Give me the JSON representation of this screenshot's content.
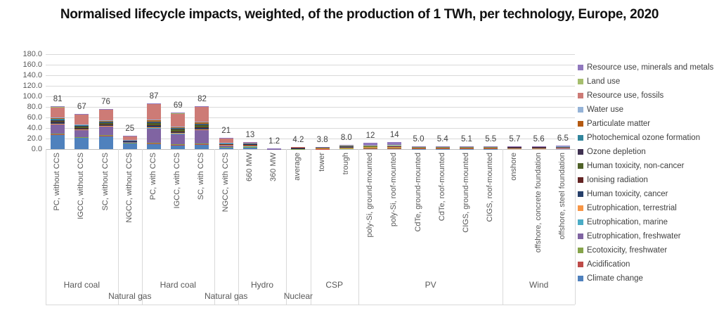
{
  "chart_data": {
    "type": "bar",
    "stacked": true,
    "title": "Normalised lifecycle impacts, weighted, of the production of 1 TWh, per technology, Europe, 2020",
    "ylim": [
      0,
      180
    ],
    "ytick_step": 20,
    "ytick_decimals": 1,
    "grid": true,
    "legend_position": "right",
    "series": [
      {
        "name": "Climate change",
        "color": "#4F81BD"
      },
      {
        "name": "Acidification",
        "color": "#BE4B48"
      },
      {
        "name": "Ecotoxicity, freshwater",
        "color": "#86A44A"
      },
      {
        "name": "Eutrophication, freshwater",
        "color": "#8064A2"
      },
      {
        "name": "Eutrophication, marine",
        "color": "#4BACC6"
      },
      {
        "name": "Eutrophication, terrestrial",
        "color": "#F79646"
      },
      {
        "name": "Human toxicity, cancer",
        "color": "#263F6A"
      },
      {
        "name": "Ionising radiation",
        "color": "#632423"
      },
      {
        "name": "Human toxicity, non-cancer",
        "color": "#4F6228"
      },
      {
        "name": "Ozone depletion",
        "color": "#3F3151"
      },
      {
        "name": "Photochemical ozone formation",
        "color": "#31859C"
      },
      {
        "name": "Particulate matter",
        "color": "#B55A11"
      },
      {
        "name": "Water use",
        "color": "#95B3D7"
      },
      {
        "name": "Resource use, fossils",
        "color": "#CD7B76"
      },
      {
        "name": "Land use",
        "color": "#A6BE6E"
      },
      {
        "name": "Resource use, minerals and metals",
        "color": "#9179BE"
      }
    ],
    "bars": [
      {
        "label": "PC, without CCS",
        "total_label": "81",
        "values": [
          27,
          2,
          0.5,
          18,
          0.3,
          0.7,
          2.5,
          0.5,
          3.5,
          0.3,
          1.5,
          2,
          1.2,
          20,
          0.5,
          0.5
        ]
      },
      {
        "label": "IGCC, without CCS",
        "total_label": "67",
        "values": [
          21,
          1.5,
          0.4,
          14,
          0.3,
          0.6,
          2,
          0.4,
          3,
          0.3,
          1.2,
          1.5,
          1,
          19,
          0.4,
          0.4
        ]
      },
      {
        "label": "SC, without CCS",
        "total_label": "76",
        "values": [
          24,
          1.8,
          0.5,
          17,
          0.3,
          0.7,
          2.2,
          0.5,
          3.2,
          0.3,
          1.4,
          1.8,
          1.1,
          20,
          0.6,
          0.6
        ]
      },
      {
        "label": "NGCC, without CCS",
        "total_label": "25",
        "values": [
          11,
          0.6,
          0.2,
          2.5,
          0.1,
          0.3,
          0.6,
          0.2,
          0.8,
          0.2,
          0.5,
          0.4,
          0.3,
          7,
          0.1,
          0.2
        ]
      },
      {
        "label": "PC, with CCS",
        "total_label": "87",
        "values": [
          9,
          2.2,
          0.8,
          28,
          0.4,
          0.8,
          3.5,
          0.6,
          5,
          0.4,
          1.8,
          2.5,
          1.5,
          29,
          0.7,
          0.8
        ]
      },
      {
        "label": "IGCC, with CCS",
        "total_label": "69",
        "values": [
          7,
          1.6,
          0.6,
          20,
          0.3,
          0.7,
          3,
          0.5,
          4.5,
          0.4,
          1.5,
          2,
          1.2,
          24.5,
          0.6,
          0.6
        ]
      },
      {
        "label": "SC, with CCS",
        "total_label": "82",
        "values": [
          8,
          2,
          0.7,
          26,
          0.4,
          0.8,
          3.2,
          0.6,
          4.8,
          0.4,
          1.7,
          2.3,
          1.4,
          28.2,
          0.7,
          0.8
        ]
      },
      {
        "label": "NGCC, with CCS",
        "total_label": "21",
        "values": [
          3,
          0.6,
          0.3,
          3.5,
          0.1,
          0.3,
          0.9,
          0.2,
          1.2,
          0.3,
          0.5,
          0.5,
          0.4,
          8.8,
          0.2,
          0.2
        ]
      },
      {
        "label": "660 MW",
        "total_label": "13",
        "values": [
          2.5,
          1,
          0.5,
          1.5,
          0.3,
          0.5,
          1.5,
          0.3,
          1.5,
          0.2,
          0.7,
          1,
          0.5,
          0.5,
          0.3,
          0.2
        ]
      },
      {
        "label": "360 MW",
        "total_label": "1.2",
        "values": [
          0.2,
          0.05,
          0.05,
          0.2,
          0,
          0,
          0.2,
          0.05,
          0.1,
          0,
          0.05,
          0.1,
          0,
          0.1,
          0,
          0.1
        ]
      },
      {
        "label": "average",
        "total_label": "4.2",
        "values": [
          0.4,
          0.1,
          0.1,
          0.4,
          0.05,
          0.05,
          0.5,
          2,
          0.2,
          0.05,
          0.1,
          0.1,
          0.05,
          0.1,
          0,
          0
        ]
      },
      {
        "label": "tower",
        "total_label": "3.8",
        "values": [
          0.5,
          0.1,
          0.1,
          0.5,
          0.05,
          0.05,
          1.7,
          0.1,
          0.2,
          0,
          0.1,
          0.1,
          0.1,
          0.1,
          0,
          0.1
        ]
      },
      {
        "label": "trough",
        "total_label": "8.0",
        "values": [
          1,
          0.2,
          0.2,
          1,
          0.1,
          0.1,
          2.5,
          0.2,
          0.5,
          0.1,
          0.2,
          0.3,
          0.2,
          0.3,
          0.1,
          1
        ]
      },
      {
        "label": "poly-Si, ground-mounted",
        "total_label": "12",
        "values": [
          1.5,
          0.3,
          0.3,
          1.5,
          0.1,
          0.1,
          1.5,
          0.2,
          0.5,
          0.1,
          0.2,
          0.3,
          0.2,
          0.3,
          0.1,
          4.8
        ]
      },
      {
        "label": "poly-Si, roof-mounted",
        "total_label": "14",
        "values": [
          1.5,
          0.4,
          0.4,
          1.5,
          0.1,
          0.1,
          1.5,
          0.2,
          0.5,
          0.1,
          0.2,
          0.3,
          0.2,
          0.4,
          0.1,
          6.5
        ]
      },
      {
        "label": "CdTe, ground-mounted",
        "total_label": "5.0",
        "values": [
          0.6,
          0.1,
          0.2,
          0.8,
          0.05,
          0.05,
          1.2,
          0.1,
          0.3,
          0,
          0.1,
          0.1,
          0.1,
          0.2,
          0.05,
          1.05
        ]
      },
      {
        "label": "CdTe, roof-mounted",
        "total_label": "5.4",
        "values": [
          0.6,
          0.1,
          0.2,
          0.8,
          0.05,
          0.05,
          1.2,
          0.1,
          0.3,
          0,
          0.1,
          0.1,
          0.1,
          0.2,
          0.05,
          1.45
        ]
      },
      {
        "label": "CIGS, ground-mounted",
        "total_label": "5.1",
        "values": [
          0.6,
          0.1,
          0.2,
          0.8,
          0.05,
          0.05,
          1.2,
          0.1,
          0.3,
          0,
          0.1,
          0.1,
          0.1,
          0.2,
          0.05,
          1.15
        ]
      },
      {
        "label": "CIGS, roof-mounted",
        "total_label": "5.5",
        "values": [
          0.6,
          0.1,
          0.2,
          0.8,
          0.05,
          0.05,
          1.2,
          0.1,
          0.3,
          0,
          0.1,
          0.1,
          0.1,
          0.2,
          0.05,
          1.55
        ]
      },
      {
        "label": "onshore",
        "total_label": "5.7",
        "values": [
          0.8,
          0.1,
          0.2,
          0.8,
          0.05,
          0.05,
          2.5,
          0.1,
          0.4,
          0,
          0.1,
          0.1,
          0.05,
          0.15,
          0.05,
          0.25
        ]
      },
      {
        "label": "offshore, concrete foundation",
        "total_label": "5.6",
        "values": [
          0.7,
          0.1,
          0.2,
          0.8,
          0.05,
          0.05,
          2.4,
          0.1,
          0.4,
          0,
          0.1,
          0.1,
          0.05,
          0.15,
          0.05,
          0.35
        ]
      },
      {
        "label": "offshore, steel foundation",
        "total_label": "6.5",
        "values": [
          0.8,
          0.1,
          0.2,
          0.9,
          0.05,
          0.05,
          3,
          0.1,
          0.5,
          0,
          0.1,
          0.1,
          0.05,
          0.2,
          0.05,
          0.3
        ]
      }
    ],
    "groups": [
      {
        "label": "Hard coal",
        "row": 0,
        "start": 0,
        "count": 3
      },
      {
        "label": "Natural gas",
        "row": 1,
        "start": 3,
        "count": 1
      },
      {
        "label": "Hard coal",
        "row": 0,
        "start": 4,
        "count": 3
      },
      {
        "label": "Natural gas",
        "row": 1,
        "start": 7,
        "count": 1
      },
      {
        "label": "Hydro",
        "row": 0,
        "start": 8,
        "count": 2
      },
      {
        "label": "Nuclear",
        "row": 1,
        "start": 10,
        "count": 1
      },
      {
        "label": "CSP",
        "row": 0,
        "start": 11,
        "count": 2
      },
      {
        "label": "PV",
        "row": 0,
        "start": 13,
        "count": 6
      },
      {
        "label": "Wind",
        "row": 0,
        "start": 19,
        "count": 3
      }
    ]
  }
}
